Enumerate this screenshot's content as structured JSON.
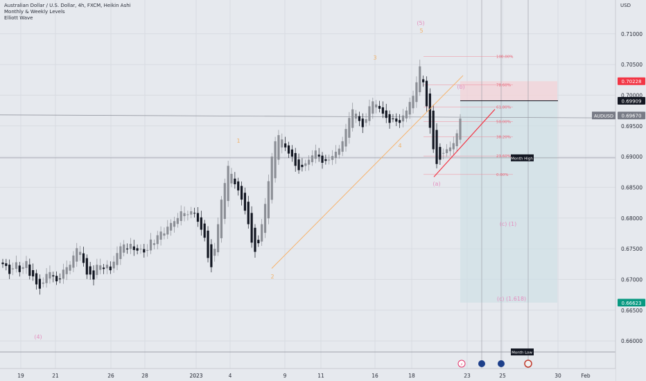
{
  "header": {
    "title": "Australian Dollar / U.S. Dollar, 4h, FXCM, Heikin Ashi",
    "indicators": [
      "Monthly & Weekly Levels",
      "Elliott Wave"
    ],
    "currency": "USD"
  },
  "price_axis": {
    "ticks": [
      "0.71000",
      "0.70500",
      "0.70000",
      "0.69500",
      "0.69000",
      "0.68500",
      "0.68000",
      "0.67500",
      "0.67000",
      "0.66500",
      "0.66000"
    ],
    "tick_values": [
      0.71,
      0.705,
      0.7,
      0.695,
      0.69,
      0.685,
      0.68,
      0.675,
      0.67,
      0.665,
      0.66
    ],
    "labels": [
      {
        "text": "0.70228",
        "value": 0.70228,
        "color": "#f23645"
      },
      {
        "text": "0.69909",
        "value": 0.69909,
        "color": "#131722"
      },
      {
        "text": "0.69670",
        "value": 0.6967,
        "color": "#787b86",
        "symbol": "AUDUSD"
      },
      {
        "text": "0.66623",
        "value": 0.66623,
        "color": "#089981"
      }
    ]
  },
  "time_axis": {
    "ticks": [
      "19",
      "21",
      "26",
      "28",
      "2023",
      "4",
      "9",
      "11",
      "16",
      "18",
      "23",
      "25",
      "30",
      "Feb"
    ]
  },
  "fib_levels": [
    {
      "label": "100.00%",
      "value": 0.7063
    },
    {
      "label": "78.60%",
      "value": 0.7017
    },
    {
      "label": "61.80%",
      "value": 0.6981
    },
    {
      "label": "50.00%",
      "value": 0.6957
    },
    {
      "label": "38.20%",
      "value": 0.6932
    },
    {
      "label": "23.60%",
      "value": 0.6901
    },
    {
      "label": "0.00%",
      "value": 0.6871
    }
  ],
  "wave_labels": [
    {
      "text": "(4)",
      "color": "#e38fbf"
    },
    {
      "text": "(5)",
      "color": "#e38fbf"
    },
    {
      "text": "(a)",
      "color": "#e38fbf"
    },
    {
      "text": "(b)",
      "color": "#e38fbf"
    },
    {
      "text": "(c) (1)",
      "color": "#e38fbf"
    },
    {
      "text": "(c) (1.618)",
      "color": "#e38fbf"
    },
    {
      "text": "1",
      "color": "#f0b16a"
    },
    {
      "text": "2",
      "color": "#f0b16a"
    },
    {
      "text": "3",
      "color": "#f0b16a"
    },
    {
      "text": "4",
      "color": "#f0b16a"
    },
    {
      "text": "5",
      "color": "#f0b16a"
    }
  ],
  "level_tags": [
    {
      "text": "Month High",
      "value": 0.6898
    },
    {
      "text": "Month Low",
      "value": 0.6582
    }
  ],
  "colors": {
    "background": "#e6e9ee",
    "candle_up": "#8c8f96",
    "candle_down": "#131722",
    "fib": "#f08c9b",
    "trendline_orange": "#f7b26a",
    "trendline_red": "#f23645",
    "target_box": "#cfe0e6",
    "stop_box": "#f3d3d8"
  },
  "chart_data": {
    "type": "candlestick",
    "title": "Australian Dollar / U.S. Dollar, 4h, FXCM, Heikin Ashi",
    "ylim": [
      0.6555,
      0.7155
    ],
    "grid": true,
    "closes": [
      0.6725,
      0.6722,
      0.6709,
      0.6718,
      0.6728,
      0.6712,
      0.672,
      0.673,
      0.6706,
      0.6705,
      0.6692,
      0.6685,
      0.6695,
      0.6709,
      0.6712,
      0.6705,
      0.6697,
      0.6701,
      0.6716,
      0.672,
      0.6724,
      0.6739,
      0.6751,
      0.6745,
      0.6727,
      0.6708,
      0.6708,
      0.67,
      0.6724,
      0.6723,
      0.6717,
      0.6724,
      0.6715,
      0.6729,
      0.6743,
      0.6754,
      0.6757,
      0.6749,
      0.6758,
      0.6748,
      0.6747,
      0.675,
      0.6744,
      0.6748,
      0.6765,
      0.6759,
      0.6772,
      0.6778,
      0.6775,
      0.6786,
      0.6792,
      0.6795,
      0.68,
      0.6811,
      0.6808,
      0.6806,
      0.6811,
      0.6808,
      0.6794,
      0.6781,
      0.6768,
      0.6735,
      0.672,
      0.675,
      0.679,
      0.683,
      0.6857,
      0.6885,
      0.6872,
      0.6855,
      0.6845,
      0.683,
      0.6812,
      0.679,
      0.676,
      0.6745,
      0.6759,
      0.679,
      0.6823,
      0.686,
      0.69,
      0.6925,
      0.6935,
      0.6928,
      0.6915,
      0.6905,
      0.69,
      0.6885,
      0.6878,
      0.6883,
      0.6889,
      0.6895,
      0.6902,
      0.691,
      0.69,
      0.689,
      0.6893,
      0.6895,
      0.6901,
      0.6908,
      0.6913,
      0.6925,
      0.6945,
      0.6963,
      0.6977,
      0.697,
      0.6958,
      0.6948,
      0.6961,
      0.6982,
      0.699,
      0.6985,
      0.6978,
      0.697,
      0.6963,
      0.6955,
      0.6962,
      0.6957,
      0.6955,
      0.6967,
      0.6975,
      0.6989,
      0.6999,
      0.7021,
      0.7047,
      0.7021,
      0.6982,
      0.6947,
      0.6912,
      0.6888,
      0.6895,
      0.6906,
      0.6912,
      0.6915,
      0.6922,
      0.6938,
      0.6962
    ]
  }
}
